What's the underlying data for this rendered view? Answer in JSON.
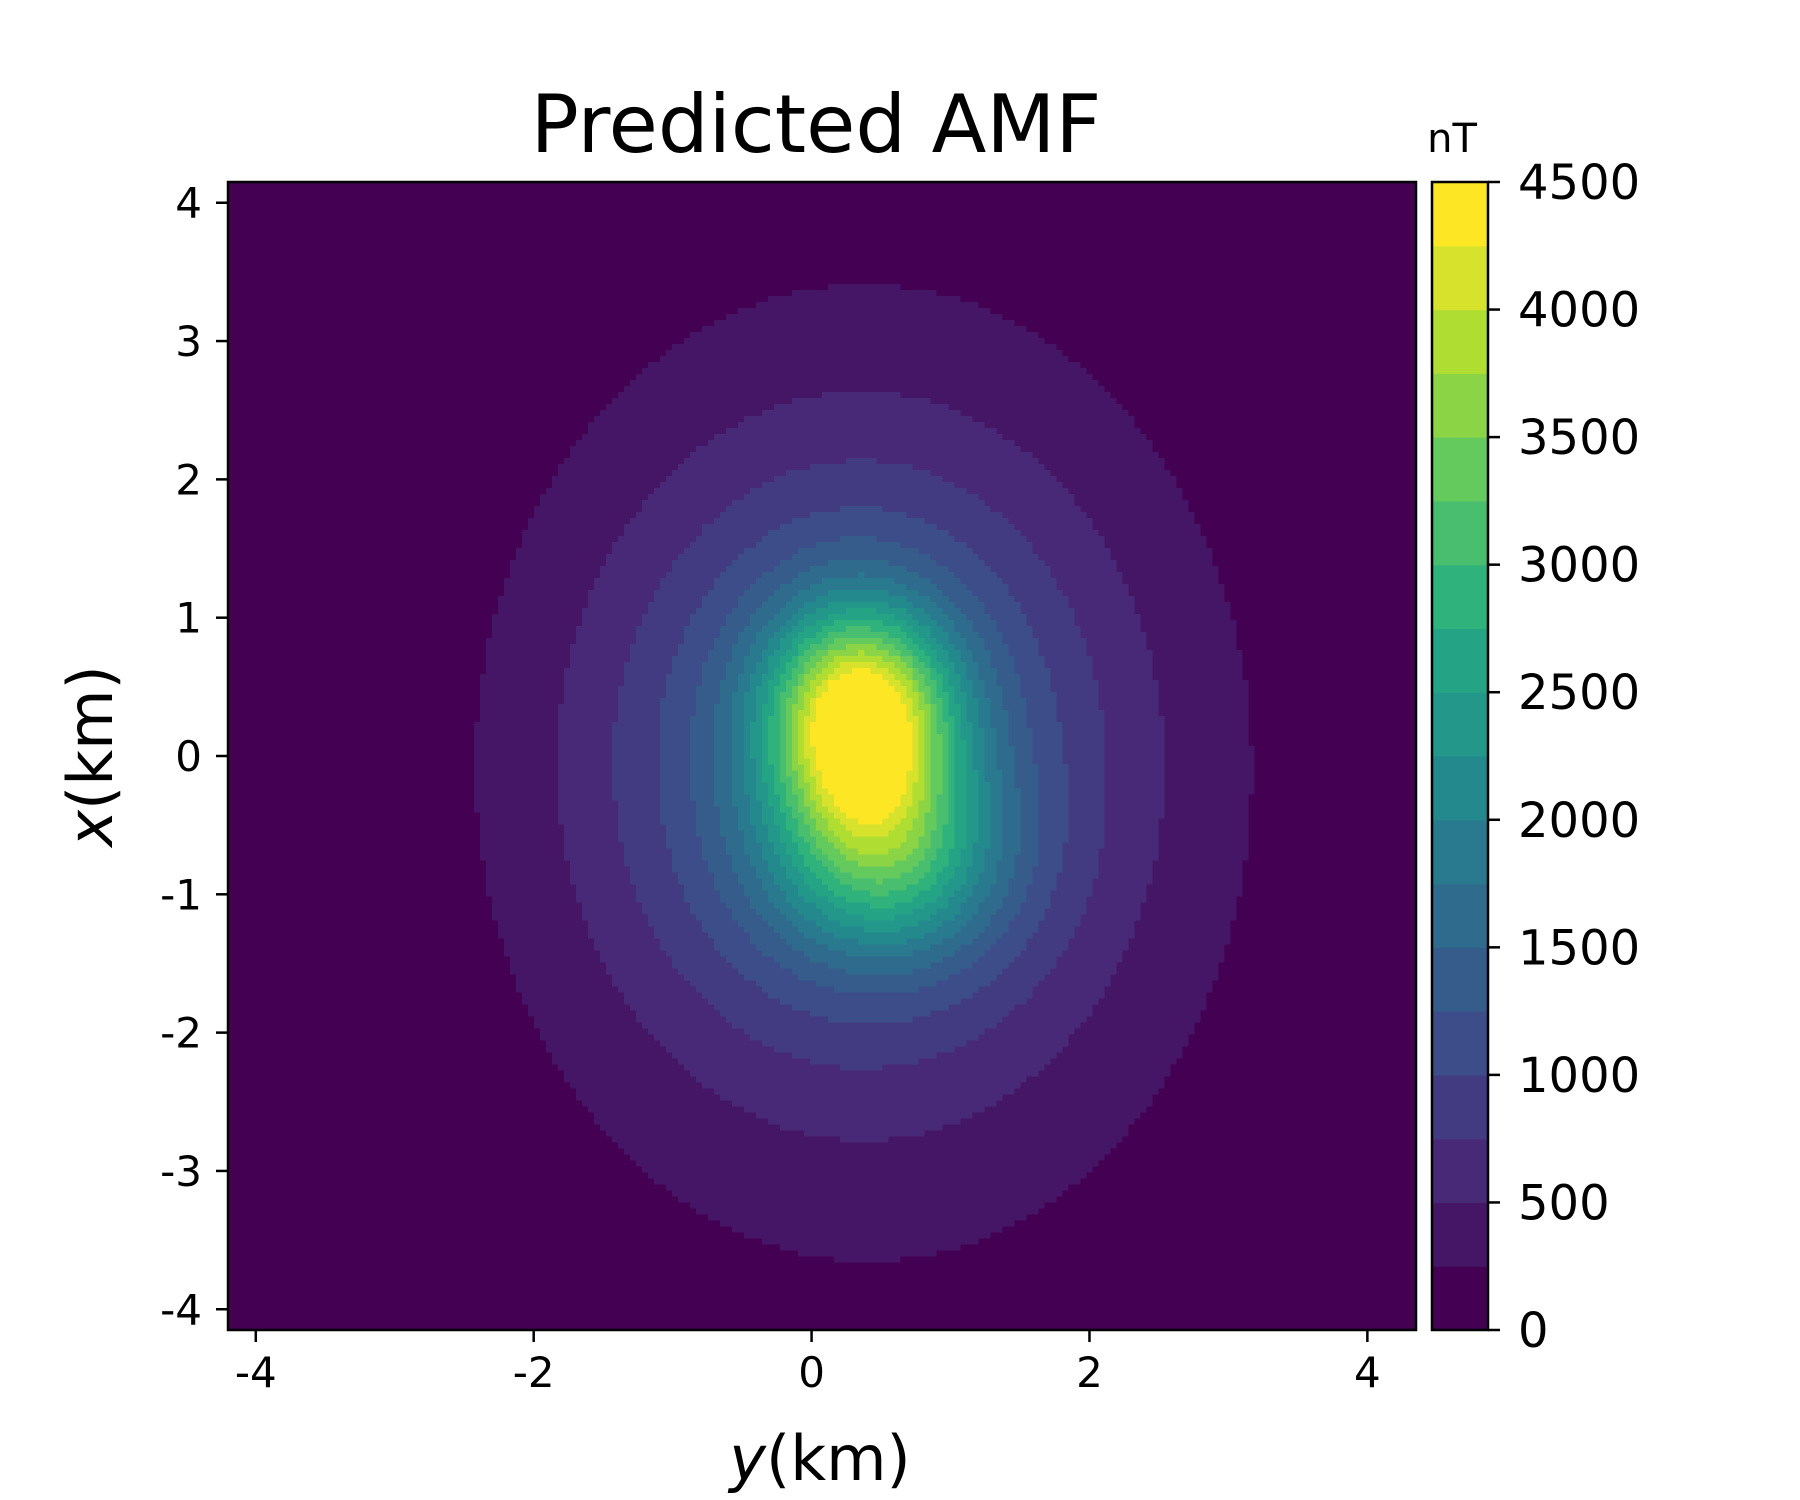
{
  "chart_data": {
    "type": "contourf",
    "title": "Predicted AMF",
    "xlabel": {
      "var": "y",
      "unit": "(km)"
    },
    "ylabel": {
      "var": "x",
      "unit": "(km)"
    },
    "xlim": [
      -4.2,
      4.35
    ],
    "ylim": [
      -4.15,
      4.15
    ],
    "x_ticks": [
      -4,
      -2,
      0,
      2,
      4
    ],
    "x_tick_labels": [
      "-4",
      "-2",
      "0",
      "2",
      "4"
    ],
    "y_ticks": [
      4,
      3,
      2,
      1,
      0,
      -1,
      -2,
      -3,
      -4
    ],
    "y_tick_labels": [
      "4",
      "3",
      "2",
      "1",
      "0",
      "-1",
      "-2",
      "-3",
      "-4"
    ],
    "colormap": "viridis",
    "colorbar": {
      "unit": "nT",
      "min": 0,
      "max": 4500,
      "level_step": 250,
      "ticks": [
        0,
        500,
        1000,
        1500,
        2000,
        2500,
        3000,
        3500,
        4000,
        4500
      ],
      "tick_labels": [
        "0",
        "500",
        "1000",
        "1500",
        "2000",
        "2500",
        "3000",
        "3500",
        "4000",
        "4500"
      ]
    },
    "grid": false,
    "field": {
      "description_of_sources": "approximate gaussian sources in data units (km, nT)",
      "sources": [
        {
          "x0": 0.25,
          "y0": 0.35,
          "amp": 3300,
          "sx": 0.55,
          "sy": 0.45
        },
        {
          "x0": -0.75,
          "y0": 0.55,
          "amp": 1500,
          "sx": 0.5,
          "sy": 0.55
        },
        {
          "x0": 0.0,
          "y0": 0.3,
          "amp": 1300,
          "sx": 1.5,
          "sy": 1.25
        },
        {
          "x0": -0.3,
          "y0": 0.5,
          "amp": 420,
          "sx": 2.6,
          "sy": 1.9
        }
      ]
    }
  }
}
